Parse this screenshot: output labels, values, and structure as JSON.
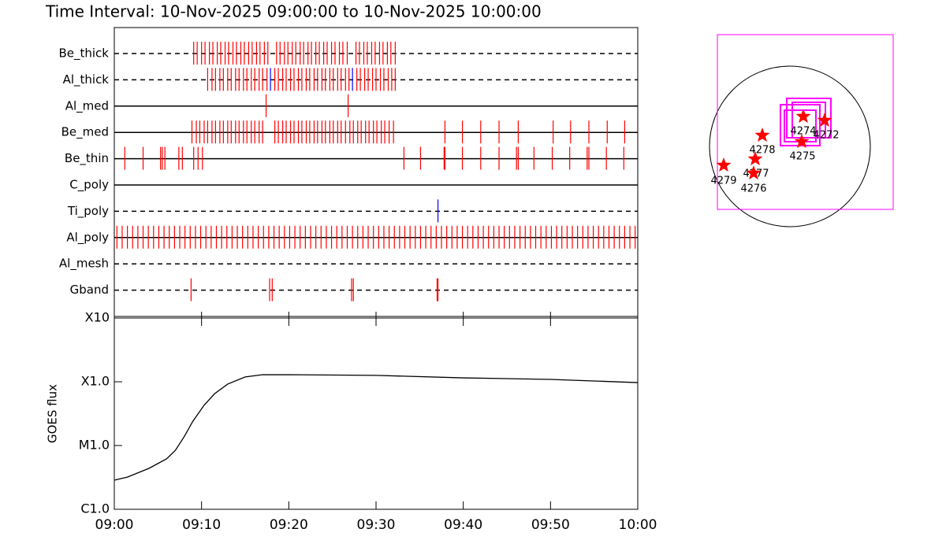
{
  "title": "Time Interval: 10-Nov-2025 09:00:00 to 10-Nov-2025 10:00:00",
  "chart_data": [
    {
      "type": "event",
      "xlim": [
        0,
        60
      ],
      "rows": [
        {
          "name": "Be_thick",
          "line": "dashed",
          "series": [
            {
              "color": "#ff0000",
              "values": [
                9.1,
                9.5,
                10.0,
                10.4,
                10.9,
                11.3,
                11.8,
                12.2,
                12.7,
                13.1,
                13.6,
                14.0,
                14.5,
                14.9,
                15.4,
                15.8,
                16.3,
                16.7,
                17.2,
                17.6,
                18.6,
                19.0,
                19.5,
                19.9,
                20.4,
                20.8,
                21.3,
                21.7,
                22.2,
                22.6,
                23.1,
                23.5,
                24.0,
                24.4,
                24.9,
                25.3,
                25.8,
                26.2,
                26.7,
                27.7,
                28.1,
                28.6,
                29.0,
                29.5,
                29.9,
                30.4,
                30.8,
                31.3,
                31.7,
                32.2
              ]
            }
          ]
        },
        {
          "name": "Al_thick",
          "line": "dashed",
          "series": [
            {
              "color": "#ff0000",
              "values": [
                10.7,
                11.2,
                11.6,
                12.1,
                12.5,
                13.0,
                13.4,
                13.9,
                14.3,
                14.8,
                15.2,
                15.7,
                16.1,
                16.6,
                17.0,
                17.5,
                18.4,
                18.8,
                19.3,
                19.7,
                20.2,
                20.6,
                21.1,
                21.5,
                22.0,
                22.4,
                22.9,
                23.3,
                23.8,
                24.2,
                24.7,
                25.1,
                25.6,
                26.0,
                26.5,
                26.9,
                27.8,
                28.2,
                28.7,
                29.1,
                29.6,
                30.0,
                30.5,
                30.9,
                31.4,
                31.8,
                32.2
              ]
            },
            {
              "color": "#0000ff",
              "values": [
                17.9,
                27.3
              ]
            }
          ]
        },
        {
          "name": "Al_med",
          "line": "solid",
          "series": [
            {
              "color": "#ff0000",
              "values": [
                17.4,
                26.8
              ]
            }
          ]
        },
        {
          "name": "Be_med",
          "line": "solid",
          "series": [
            {
              "color": "#ff0000",
              "values": [
                8.9,
                9.4,
                9.8,
                10.3,
                10.7,
                11.2,
                11.6,
                12.1,
                12.5,
                13.0,
                13.4,
                13.9,
                14.3,
                14.8,
                15.2,
                15.7,
                16.1,
                16.6,
                17.0,
                18.4,
                18.8,
                19.3,
                19.7,
                20.2,
                20.6,
                21.1,
                21.5,
                22.0,
                22.4,
                22.9,
                23.3,
                23.8,
                24.2,
                24.7,
                25.1,
                25.6,
                26.0,
                26.5,
                27.0,
                27.4,
                27.9,
                28.3,
                28.8,
                29.2,
                29.7,
                30.1,
                30.6,
                31.0,
                31.5,
                32.0,
                37.9,
                39.9,
                42.0,
                44.1,
                46.3,
                50.3,
                52.3,
                54.4,
                56.5,
                58.5
              ]
            }
          ]
        },
        {
          "name": "Be_thin",
          "line": "solid",
          "series": [
            {
              "color": "#ff0000",
              "values": [
                1.2,
                3.3,
                5.3,
                5.5,
                5.8,
                7.4,
                7.8,
                9.1,
                9.6,
                10.1,
                33.2,
                35.1,
                37.8,
                37.9,
                39.9,
                42.0,
                44.1,
                46.1,
                46.3,
                48.1,
                50.2,
                52.2,
                54.2,
                54.4,
                56.4,
                58.4
              ]
            }
          ]
        },
        {
          "name": "C_poly",
          "line": "solid",
          "series": []
        },
        {
          "name": "Ti_poly",
          "line": "dashed",
          "series": [
            {
              "color": "#0000ff",
              "values": [
                37.1
              ]
            }
          ]
        },
        {
          "name": "Al_poly",
          "line": "solid",
          "series": [
            {
              "color": "#ff0000",
              "values": [
                0.3,
                0.9,
                1.5,
                2.1,
                2.7,
                3.3,
                3.9,
                4.5,
                5.1,
                5.7,
                6.3,
                6.9,
                7.5,
                8.1,
                8.7,
                9.3,
                9.9,
                10.5,
                11.1,
                11.7,
                12.3,
                12.9,
                13.5,
                14.1,
                14.7,
                15.3,
                15.9,
                16.5,
                17.1,
                17.7,
                18.3,
                18.9,
                19.5,
                20.1,
                20.7,
                21.3,
                21.9,
                22.5,
                23.1,
                23.7,
                24.3,
                24.9,
                25.5,
                26.1,
                26.7,
                27.3,
                27.9,
                28.5,
                29.1,
                29.7,
                30.3,
                30.9,
                31.5,
                32.1,
                32.7,
                33.3,
                33.9,
                34.5,
                35.1,
                35.7,
                36.3,
                36.9,
                37.5,
                38.1,
                38.7,
                39.3,
                39.9,
                40.5,
                41.1,
                41.7,
                42.3,
                42.9,
                43.5,
                44.1,
                44.7,
                45.3,
                45.9,
                46.5,
                47.1,
                47.7,
                48.3,
                48.9,
                49.5,
                50.1,
                50.7,
                51.3,
                51.9,
                52.5,
                53.1,
                53.7,
                54.3,
                54.9,
                55.5,
                56.1,
                56.7,
                57.3,
                57.9,
                58.5,
                59.1,
                59.7
              ]
            }
          ]
        },
        {
          "name": "Al_mesh",
          "line": "dashed",
          "series": []
        },
        {
          "name": "Gband",
          "line": "dashed",
          "series": [
            {
              "color": "#ff0000",
              "values": [
                8.8,
                17.8,
                18.1,
                27.2,
                27.4,
                37.0,
                37.1
              ]
            }
          ]
        }
      ]
    },
    {
      "type": "line",
      "y_label": "GOES flux",
      "log": true,
      "color": "#000000",
      "x": [
        0,
        1.5,
        4,
        6,
        7,
        8,
        9,
        10.3,
        11.5,
        13,
        15,
        17,
        20,
        30,
        40,
        50,
        60
      ],
      "values": [
        2.86e-06,
        3.2e-06,
        4.4e-06,
        6.2e-06,
        8.4e-06,
        1.37e-05,
        2.4e-05,
        4.3e-05,
        6.5e-05,
        9.2e-05,
        0.000119,
        0.000129,
        0.000129,
        0.000126,
        0.000115,
        0.000109,
        9.7e-05
      ],
      "xlim": [
        0,
        60
      ],
      "xticks": [
        {
          "value": 0,
          "label": "09:00"
        },
        {
          "value": 10,
          "label": "09:10"
        },
        {
          "value": 20,
          "label": "09:20"
        },
        {
          "value": 30,
          "label": "09:30"
        },
        {
          "value": 40,
          "label": "09:40"
        },
        {
          "value": 50,
          "label": "09:50"
        },
        {
          "value": 60,
          "label": "10:00"
        }
      ],
      "ylim": [
        1e-06,
        0.001
      ],
      "yticks": [
        {
          "value": 1e-06,
          "label": "C1.0"
        },
        {
          "value": 1e-05,
          "label": "M1.0"
        },
        {
          "value": 0.0001,
          "label": "X1.0"
        },
        {
          "value": 0.001,
          "label": "X10"
        }
      ]
    }
  ],
  "map": {
    "regions": [
      "4274",
      "4272",
      "4275",
      "4278",
      "4277",
      "4276",
      "4279"
    ],
    "star_color": "#ff0000",
    "box_color": "#ff00ff"
  }
}
